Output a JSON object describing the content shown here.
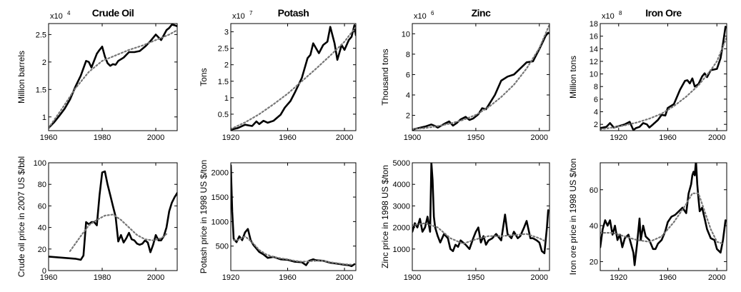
{
  "chart_data": [
    {
      "id": "crude-oil-production",
      "type": "line",
      "title": "Crude Oil",
      "multiplier": {
        "base": "x10",
        "exp": "4"
      },
      "ylabel": "Million barrels",
      "xlim": [
        1960,
        2008
      ],
      "ylim": [
        0.75,
        2.7
      ],
      "xticks": [
        1960,
        1980,
        2000
      ],
      "yticks": [
        1,
        1.5,
        2,
        2.5
      ],
      "series": [
        {
          "style": "solid",
          "x": [
            1960,
            1962,
            1964,
            1966,
            1968,
            1970,
            1972,
            1974,
            1975,
            1976,
            1978,
            1979,
            1980,
            1981,
            1982,
            1983,
            1984,
            1985,
            1986,
            1988,
            1990,
            1992,
            1994,
            1996,
            1998,
            2000,
            2002,
            2004,
            2005,
            2006,
            2007,
            2008
          ],
          "y": [
            0.8,
            0.9,
            1.02,
            1.15,
            1.32,
            1.55,
            1.75,
            2.02,
            2.0,
            1.9,
            2.15,
            2.22,
            2.28,
            2.1,
            1.98,
            1.93,
            1.96,
            1.95,
            2.02,
            2.08,
            2.18,
            2.18,
            2.2,
            2.28,
            2.38,
            2.5,
            2.4,
            2.58,
            2.62,
            2.68,
            2.67,
            2.65
          ]
        },
        {
          "style": "dotted",
          "x": [
            1960,
            1965,
            1970,
            1975,
            1980,
            1985,
            1990,
            1995,
            2000,
            2005,
            2008
          ],
          "y": [
            0.8,
            1.15,
            1.52,
            1.82,
            2.02,
            2.12,
            2.22,
            2.3,
            2.4,
            2.5,
            2.58
          ]
        }
      ]
    },
    {
      "id": "potash-production",
      "type": "line",
      "title": "Potash",
      "multiplier": {
        "base": "x10",
        "exp": "7"
      },
      "ylabel": "Tons",
      "xlim": [
        1920,
        2008
      ],
      "ylim": [
        0,
        3.25
      ],
      "xticks": [
        1920,
        1960,
        2000
      ],
      "yticks": [
        0.5,
        1,
        1.5,
        2,
        2.5,
        3
      ],
      "series": [
        {
          "style": "solid",
          "x": [
            1920,
            1925,
            1930,
            1935,
            1938,
            1940,
            1943,
            1946,
            1950,
            1955,
            1958,
            1962,
            1965,
            1970,
            1974,
            1976,
            1978,
            1980,
            1982,
            1985,
            1988,
            1990,
            1993,
            1995,
            1998,
            2000,
            2003,
            2005,
            2007,
            2008
          ],
          "y": [
            0.03,
            0.08,
            0.18,
            0.14,
            0.28,
            0.2,
            0.3,
            0.24,
            0.3,
            0.48,
            0.7,
            0.9,
            1.15,
            1.6,
            2.2,
            2.3,
            2.65,
            2.5,
            2.35,
            2.6,
            2.7,
            3.15,
            2.65,
            2.15,
            2.6,
            2.45,
            2.75,
            2.85,
            3.2,
            2.9
          ]
        },
        {
          "style": "dotted",
          "x": [
            1920,
            1930,
            1940,
            1950,
            1960,
            1970,
            1980,
            1990,
            2000,
            2008
          ],
          "y": [
            0.05,
            0.25,
            0.5,
            0.8,
            1.12,
            1.5,
            1.88,
            2.28,
            2.7,
            3.15
          ]
        }
      ]
    },
    {
      "id": "zinc-production",
      "type": "line",
      "title": "Zinc",
      "multiplier": {
        "base": "x10",
        "exp": "6"
      },
      "ylabel": "Thousand tons",
      "xlim": [
        1900,
        2008
      ],
      "ylim": [
        0.5,
        11
      ],
      "xticks": [
        1900,
        1950,
        2000
      ],
      "yticks": [
        2,
        4,
        6,
        8,
        10
      ],
      "series": [
        {
          "style": "solid",
          "x": [
            1900,
            1905,
            1910,
            1915,
            1918,
            1920,
            1925,
            1929,
            1932,
            1935,
            1938,
            1942,
            1945,
            1948,
            1952,
            1955,
            1958,
            1960,
            1965,
            1970,
            1975,
            1980,
            1985,
            1990,
            1995,
            2000,
            2005,
            2007
          ],
          "y": [
            0.6,
            0.75,
            0.9,
            1.1,
            0.95,
            0.8,
            1.15,
            1.4,
            1.0,
            1.25,
            1.6,
            1.85,
            1.55,
            1.7,
            2.1,
            2.7,
            2.6,
            3.0,
            4.0,
            5.4,
            5.8,
            6.0,
            6.6,
            7.2,
            7.3,
            8.5,
            9.8,
            10.1
          ]
        },
        {
          "style": "dotted",
          "x": [
            1900,
            1910,
            1920,
            1930,
            1940,
            1950,
            1960,
            1970,
            1980,
            1990,
            2000,
            2008
          ],
          "y": [
            0.65,
            0.75,
            0.95,
            1.2,
            1.55,
            2.05,
            2.8,
            3.8,
            5.0,
            6.6,
            8.6,
            10.9
          ]
        }
      ]
    },
    {
      "id": "iron-ore-production",
      "type": "line",
      "title": "Iron Ore",
      "multiplier": {
        "base": "x10",
        "exp": "8"
      },
      "ylabel": "Million tons",
      "xlim": [
        1905,
        2008
      ],
      "ylim": [
        1,
        18
      ],
      "xticks": [
        1920,
        1960,
        2000
      ],
      "yticks": [
        2,
        4,
        6,
        8,
        10,
        12,
        14,
        16,
        18
      ],
      "series": [
        {
          "style": "solid",
          "x": [
            1905,
            1910,
            1913,
            1916,
            1920,
            1925,
            1929,
            1932,
            1934,
            1937,
            1940,
            1943,
            1945,
            1948,
            1952,
            1955,
            1958,
            1960,
            1965,
            1970,
            1974,
            1976,
            1978,
            1980,
            1982,
            1985,
            1988,
            1990,
            1992,
            1995,
            2000,
            2003,
            2005,
            2007
          ],
          "y": [
            1.4,
            1.6,
            2.2,
            1.5,
            1.7,
            2.0,
            2.4,
            1.1,
            1.4,
            1.6,
            2.2,
            2.0,
            1.5,
            2.0,
            2.7,
            3.5,
            3.4,
            4.6,
            5.2,
            7.5,
            8.9,
            9.0,
            8.5,
            9.3,
            8.0,
            8.4,
            9.6,
            10.1,
            9.5,
            10.6,
            10.8,
            12.5,
            14.8,
            17.5
          ]
        },
        {
          "style": "dotted",
          "x": [
            1905,
            1915,
            1925,
            1935,
            1945,
            1955,
            1965,
            1975,
            1985,
            1995,
            2000,
            2008
          ],
          "y": [
            1.2,
            1.5,
            1.85,
            2.3,
            2.9,
            3.7,
            4.9,
            6.4,
            8.2,
            10.6,
            12.0,
            15.8
          ]
        }
      ]
    },
    {
      "id": "crude-oil-price",
      "type": "line",
      "title": "",
      "ylabel": "Crude oil price in 2007 US $/bbl",
      "xlim": [
        1960,
        2008
      ],
      "ylim": [
        0,
        100
      ],
      "xticks": [
        1960,
        1980,
        2000
      ],
      "yticks": [
        0,
        20,
        40,
        60,
        80,
        100
      ],
      "series": [
        {
          "style": "solid",
          "x": [
            1960,
            1965,
            1970,
            1972,
            1973,
            1974,
            1975,
            1976,
            1977,
            1978,
            1979,
            1980,
            1981,
            1982,
            1983,
            1984,
            1985,
            1986,
            1987,
            1988,
            1989,
            1990,
            1991,
            1992,
            1993,
            1994,
            1995,
            1996,
            1997,
            1998,
            1999,
            2000,
            2001,
            2002,
            2003,
            2004,
            2005,
            2006,
            2007,
            2008
          ],
          "y": [
            13,
            12,
            11,
            10,
            14,
            45,
            43,
            45,
            45,
            42,
            70,
            91,
            92,
            80,
            70,
            60,
            50,
            27,
            33,
            26,
            30,
            35,
            29,
            28,
            25,
            24,
            25,
            28,
            26,
            17,
            24,
            33,
            28,
            28,
            32,
            40,
            55,
            63,
            68,
            72
          ]
        },
        {
          "style": "dotted",
          "x": [
            1968,
            1972,
            1975,
            1978,
            1981,
            1984,
            1987,
            1990,
            1993,
            1996,
            1999,
            2002,
            2004
          ],
          "y": [
            18,
            32,
            42,
            47,
            51,
            52,
            47,
            40,
            33,
            29,
            28,
            30,
            34
          ]
        }
      ]
    },
    {
      "id": "potash-price",
      "type": "line",
      "title": "",
      "ylabel": "Potash price in 1998 US $/ton",
      "xlim": [
        1920,
        2008
      ],
      "ylim": [
        0,
        2200
      ],
      "xticks": [
        1920,
        1960,
        2000
      ],
      "yticks": [
        500,
        1000,
        1500,
        2000
      ],
      "series": [
        {
          "style": "solid",
          "x": [
            1920,
            1921,
            1922,
            1924,
            1926,
            1928,
            1930,
            1932,
            1934,
            1936,
            1938,
            1940,
            1943,
            1946,
            1950,
            1955,
            1960,
            1965,
            1970,
            1973,
            1975,
            1978,
            1980,
            1985,
            1990,
            1995,
            2000,
            2003,
            2005,
            2007
          ],
          "y": [
            2150,
            1200,
            650,
            580,
            700,
            620,
            780,
            850,
            620,
            520,
            450,
            380,
            330,
            260,
            280,
            230,
            220,
            180,
            170,
            110,
            200,
            230,
            210,
            200,
            160,
            140,
            120,
            110,
            90,
            130
          ]
        },
        {
          "style": "dotted",
          "x": [
            1922,
            1925,
            1930,
            1935,
            1940,
            1945,
            1950,
            1955,
            1960,
            1965,
            1970,
            1975,
            1980,
            1985,
            1990,
            1995,
            2000,
            2005
          ],
          "y": [
            620,
            620,
            700,
            580,
            420,
            330,
            280,
            250,
            230,
            200,
            180,
            190,
            200,
            200,
            170,
            150,
            130,
            120
          ]
        }
      ]
    },
    {
      "id": "zinc-price",
      "type": "line",
      "title": "",
      "ylabel": "Zinc price in 1998 US $/ton",
      "xlim": [
        1900,
        2008
      ],
      "ylim": [
        0,
        5000
      ],
      "xticks": [
        1900,
        1950,
        2000
      ],
      "yticks": [
        1000,
        2000,
        3000,
        4000,
        5000
      ],
      "series": [
        {
          "style": "solid",
          "x": [
            1900,
            1902,
            1904,
            1906,
            1908,
            1910,
            1912,
            1914,
            1915,
            1916,
            1917,
            1918,
            1920,
            1922,
            1925,
            1928,
            1930,
            1932,
            1934,
            1936,
            1938,
            1940,
            1942,
            1945,
            1948,
            1950,
            1952,
            1954,
            1956,
            1958,
            1960,
            1963,
            1966,
            1970,
            1973,
            1975,
            1978,
            1980,
            1983,
            1985,
            1988,
            1990,
            1993,
            1995,
            1998,
            2000,
            2002,
            2004,
            2006,
            2007
          ],
          "y": [
            1800,
            2200,
            2000,
            2400,
            1800,
            2000,
            2500,
            1800,
            5000,
            4200,
            2500,
            2000,
            1600,
            1300,
            1700,
            1500,
            1000,
            900,
            1200,
            1100,
            1400,
            1300,
            1200,
            1000,
            1500,
            1800,
            2000,
            1300,
            1600,
            1200,
            1400,
            1500,
            1700,
            1400,
            2600,
            1700,
            1500,
            1800,
            1500,
            1600,
            2000,
            2300,
            1500,
            1500,
            1400,
            1300,
            900,
            800,
            2000,
            2800
          ]
        },
        {
          "style": "dotted",
          "x": [
            1900,
            1910,
            1920,
            1930,
            1940,
            1950,
            1960,
            1970,
            1980,
            1990,
            2000,
            2005
          ],
          "y": [
            2100,
            2200,
            2000,
            1500,
            1250,
            1450,
            1600,
            1600,
            1650,
            1700,
            1500,
            1350
          ]
        }
      ]
    },
    {
      "id": "iron-ore-price",
      "type": "line",
      "title": "",
      "ylabel": "Iron ore price in 1998 US $/ton",
      "xlim": [
        1905,
        2008
      ],
      "ylim": [
        15,
        75
      ],
      "xticks": [
        1920,
        1960,
        2000
      ],
      "yticks": [
        20,
        40,
        60
      ],
      "series": [
        {
          "style": "solid",
          "x": [
            1905,
            1907,
            1909,
            1911,
            1913,
            1915,
            1917,
            1919,
            1921,
            1923,
            1925,
            1928,
            1930,
            1932,
            1933,
            1935,
            1937,
            1938,
            1940,
            1942,
            1945,
            1948,
            1950,
            1952,
            1955,
            1958,
            1960,
            1963,
            1966,
            1969,
            1972,
            1975,
            1977,
            1979,
            1980,
            1981,
            1982,
            1983,
            1984,
            1985,
            1986,
            1988,
            1990,
            1992,
            1995,
            1998,
            2000,
            2003,
            2005,
            2007
          ],
          "y": [
            28,
            38,
            43,
            40,
            43,
            35,
            40,
            32,
            35,
            28,
            33,
            35,
            30,
            25,
            18,
            30,
            44,
            32,
            40,
            34,
            32,
            27,
            27,
            30,
            32,
            37,
            42,
            45,
            46,
            48,
            50,
            47,
            58,
            63,
            68,
            70,
            68,
            76,
            63,
            55,
            48,
            50,
            44,
            38,
            33,
            32,
            27,
            25,
            32,
            43
          ]
        },
        {
          "style": "dotted",
          "x": [
            1905,
            1915,
            1925,
            1935,
            1945,
            1955,
            1965,
            1975,
            1980,
            1985,
            1990,
            1995,
            2000,
            2005
          ],
          "y": [
            36,
            36,
            34,
            32,
            31,
            34,
            42,
            52,
            58,
            58,
            48,
            38,
            31,
            30
          ]
        }
      ]
    }
  ]
}
